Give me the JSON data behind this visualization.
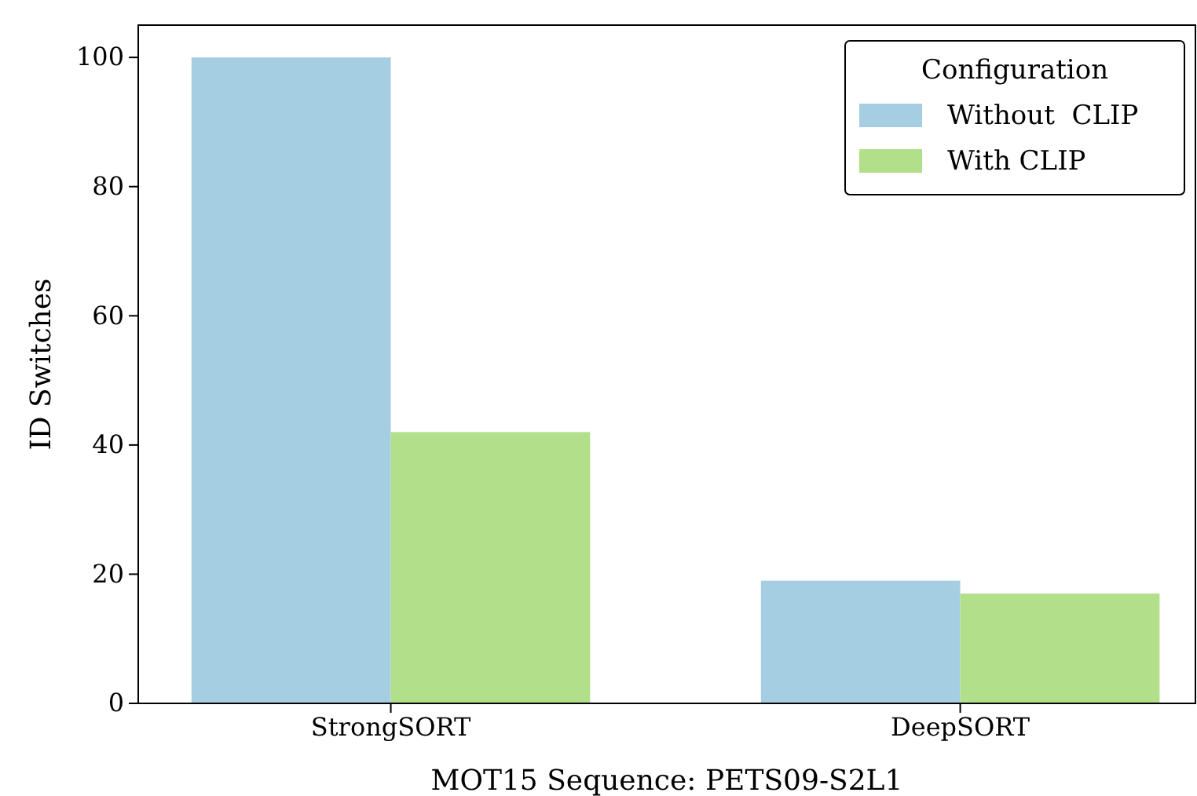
{
  "chart_data": {
    "type": "bar",
    "xlabel": "MOT15 Sequence: PETS09-S2L1",
    "ylabel": "ID Switches",
    "legend_title": "Configuration",
    "legend": "top right",
    "categories": [
      "StrongSORT",
      "DeepSORT"
    ],
    "series": [
      {
        "name": "Without  CLIP",
        "color": "#a6cee3",
        "values": [
          100,
          19
        ]
      },
      {
        "name": "With CLIP",
        "color": "#b2df8a",
        "values": [
          42,
          17
        ]
      }
    ],
    "ylim": [
      0,
      105
    ],
    "yticks": [
      0,
      20,
      40,
      60,
      80,
      100
    ],
    "grid": false
  }
}
